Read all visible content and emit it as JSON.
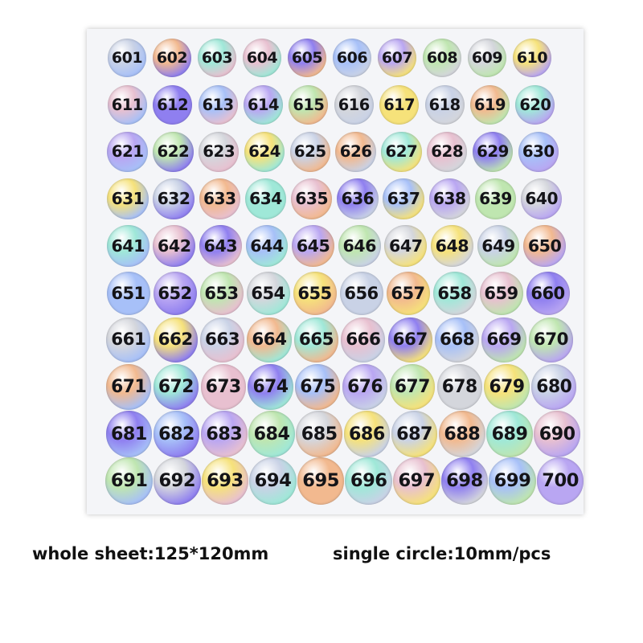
{
  "sheet": {
    "stickers": [
      "601",
      "602",
      "603",
      "604",
      "605",
      "606",
      "607",
      "608",
      "609",
      "610",
      "611",
      "612",
      "613",
      "614",
      "615",
      "616",
      "617",
      "618",
      "619",
      "620",
      "621",
      "622",
      "623",
      "624",
      "625",
      "626",
      "627",
      "628",
      "629",
      "630",
      "631",
      "632",
      "633",
      "634",
      "635",
      "636",
      "637",
      "638",
      "639",
      "640",
      "641",
      "642",
      "643",
      "644",
      "645",
      "646",
      "647",
      "648",
      "649",
      "650",
      "651",
      "652",
      "653",
      "654",
      "655",
      "656",
      "657",
      "658",
      "659",
      "660",
      "661",
      "662",
      "663",
      "664",
      "665",
      "666",
      "667",
      "668",
      "669",
      "670",
      "671",
      "672",
      "673",
      "674",
      "675",
      "676",
      "677",
      "678",
      "679",
      "680",
      "681",
      "682",
      "683",
      "684",
      "685",
      "686",
      "687",
      "688",
      "689",
      "690",
      "691",
      "692",
      "693",
      "694",
      "695",
      "696",
      "697",
      "698",
      "699",
      "700"
    ]
  },
  "caption": {
    "left": "whole sheet:125*120mm",
    "right": "single circle:10mm/pcs"
  }
}
